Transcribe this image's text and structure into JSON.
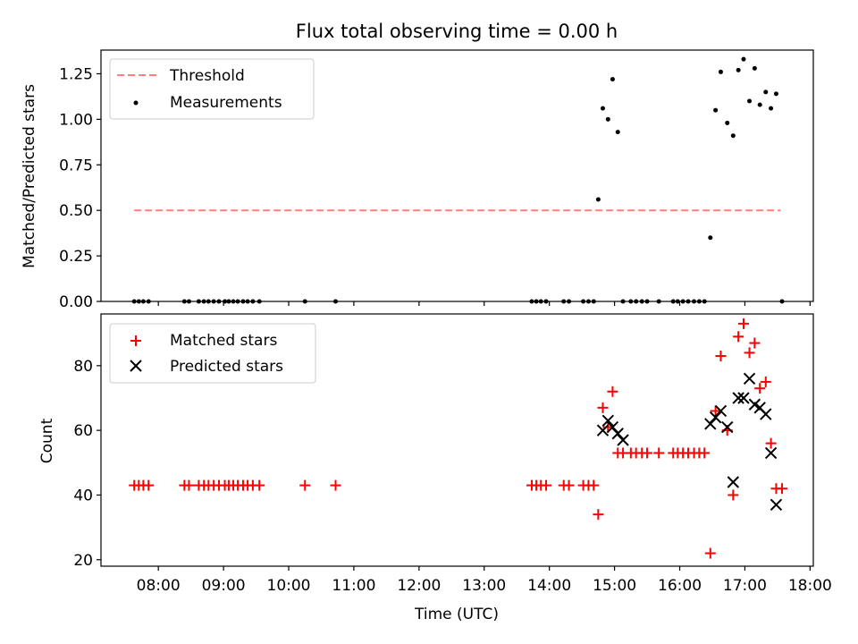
{
  "figure": {
    "title": "Flux total observing time = 0.00 h"
  },
  "chart_data": [
    {
      "type": "scatter",
      "panel": "top",
      "title": "Flux total observing time = 0.00 h",
      "xlabel": "",
      "ylabel": "Matched/Predicted stars",
      "xlim": [
        7.12,
        18.05
      ],
      "ylim": [
        0,
        1.38
      ],
      "yticks": [
        0.0,
        0.25,
        0.5,
        0.75,
        1.0,
        1.25
      ],
      "ytick_labels": [
        "0.00",
        "0.25",
        "0.50",
        "0.75",
        "1.00",
        "1.25"
      ],
      "legend": "top-left",
      "threshold": {
        "name": "Threshold",
        "x": [
          7.63,
          17.55
        ],
        "y": 0.5,
        "color": "#ff7f7f",
        "style": "dashed"
      },
      "series": [
        {
          "name": "Measurements",
          "marker": "dot",
          "color": "#000000",
          "x": [
            7.63,
            7.7,
            7.77,
            7.85,
            8.4,
            8.47,
            8.62,
            8.7,
            8.77,
            8.85,
            8.93,
            9.02,
            9.08,
            9.15,
            9.22,
            9.3,
            9.37,
            9.45,
            9.55,
            10.25,
            10.72,
            13.73,
            13.8,
            13.87,
            13.95,
            14.22,
            14.3,
            14.52,
            14.6,
            14.68,
            14.75,
            14.82,
            14.9,
            14.97,
            15.05,
            15.13,
            15.25,
            15.33,
            15.42,
            15.5,
            15.68,
            15.9,
            15.97,
            16.05,
            16.13,
            16.22,
            16.3,
            16.38,
            16.47,
            16.55,
            16.63,
            16.73,
            16.82,
            16.9,
            16.98,
            17.07,
            17.15,
            17.23,
            17.32,
            17.4,
            17.48,
            17.57
          ],
          "y": [
            0,
            0,
            0,
            0,
            0,
            0,
            0,
            0,
            0,
            0,
            0,
            0,
            0,
            0,
            0,
            0,
            0,
            0,
            0,
            0,
            0,
            0,
            0,
            0,
            0,
            0,
            0,
            0,
            0,
            0,
            0.56,
            1.06,
            1.0,
            1.22,
            0.93,
            0,
            0,
            0,
            0,
            0,
            0,
            0,
            0,
            0,
            0,
            0,
            0,
            0,
            0.35,
            1.05,
            1.26,
            0.98,
            0.91,
            1.27,
            1.33,
            1.1,
            1.28,
            1.08,
            1.15,
            1.06,
            1.14,
            0
          ]
        }
      ]
    },
    {
      "type": "scatter",
      "panel": "bottom",
      "xlabel": "Time (UTC)",
      "ylabel": "Count",
      "xlim": [
        7.12,
        18.05
      ],
      "ylim": [
        18,
        96
      ],
      "yticks": [
        20,
        40,
        60,
        80
      ],
      "ytick_labels": [
        "20",
        "40",
        "60",
        "80"
      ],
      "xticks": [
        8,
        9,
        10,
        11,
        12,
        13,
        14,
        15,
        16,
        17,
        18
      ],
      "xtick_labels": [
        "08:00",
        "09:00",
        "10:00",
        "11:00",
        "12:00",
        "13:00",
        "14:00",
        "15:00",
        "16:00",
        "17:00",
        "18:00"
      ],
      "legend": "top-left",
      "series": [
        {
          "name": "Matched stars",
          "marker": "plus",
          "color": "#ff0000",
          "x": [
            7.63,
            7.7,
            7.77,
            7.85,
            8.4,
            8.47,
            8.62,
            8.7,
            8.77,
            8.85,
            8.93,
            9.02,
            9.08,
            9.15,
            9.22,
            9.3,
            9.37,
            9.45,
            9.55,
            10.25,
            10.72,
            13.73,
            13.8,
            13.87,
            13.95,
            14.22,
            14.3,
            14.52,
            14.6,
            14.68,
            14.75,
            14.82,
            14.9,
            14.97,
            15.05,
            15.13,
            15.25,
            15.33,
            15.42,
            15.5,
            15.68,
            15.9,
            15.97,
            16.05,
            16.13,
            16.22,
            16.3,
            16.38,
            16.47,
            16.55,
            16.63,
            16.73,
            16.82,
            16.9,
            16.98,
            17.07,
            17.15,
            17.23,
            17.32,
            17.4,
            17.48,
            17.57
          ],
          "y": [
            43,
            43,
            43,
            43,
            43,
            43,
            43,
            43,
            43,
            43,
            43,
            43,
            43,
            43,
            43,
            43,
            43,
            43,
            43,
            43,
            43,
            43,
            43,
            43,
            43,
            43,
            43,
            43,
            43,
            43,
            34,
            67,
            61,
            72,
            53,
            53,
            53,
            53,
            53,
            53,
            53,
            53,
            53,
            53,
            53,
            53,
            53,
            53,
            22,
            66,
            83,
            60,
            40,
            89,
            93,
            84,
            87,
            73,
            75,
            56,
            42,
            42
          ]
        },
        {
          "name": "Predicted stars",
          "marker": "x",
          "color": "#000000",
          "x": [
            14.82,
            14.9,
            14.97,
            15.05,
            15.13,
            16.47,
            16.55,
            16.63,
            16.73,
            16.82,
            16.9,
            16.98,
            17.07,
            17.15,
            17.23,
            17.32,
            17.4,
            17.48
          ],
          "y": [
            60,
            63,
            61,
            59,
            57,
            62,
            64,
            66,
            61,
            44,
            70,
            70,
            76,
            68,
            67,
            65,
            53,
            37
          ]
        }
      ]
    }
  ]
}
